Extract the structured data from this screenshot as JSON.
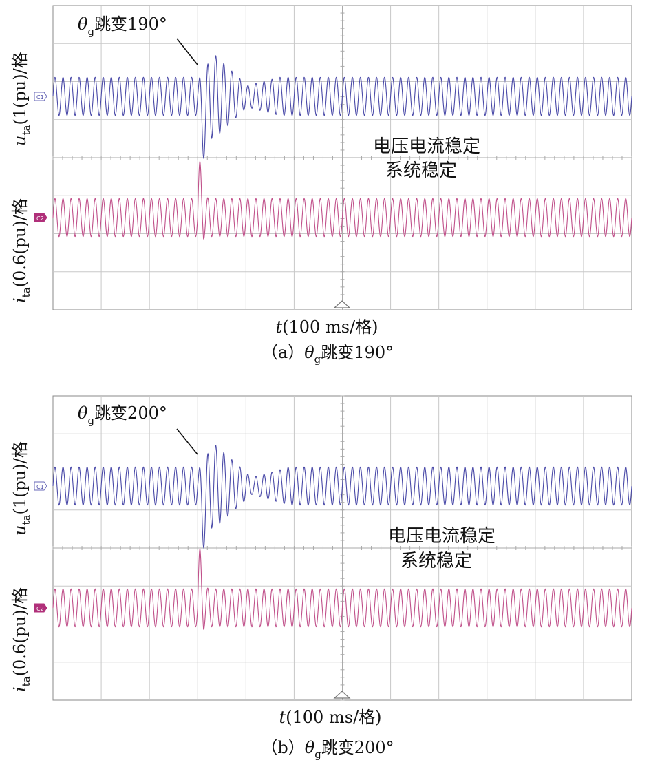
{
  "panels": [
    {
      "id": "a",
      "caption_prefix": "（a）",
      "caption_theta": "θ",
      "caption_sub": "g",
      "caption_rest": "跳变190°",
      "jump_label_theta": "θ",
      "jump_label_sub": "g",
      "jump_label_rest": "跳变190°",
      "annotation_line1": "电压电流稳定",
      "annotation_line2": "系统稳定",
      "ylabel_u_var": "u",
      "ylabel_u_sub": "ta",
      "ylabel_u_rest": "(1(pu)/格",
      "ylabel_i_var": "i",
      "ylabel_i_sub": "ta",
      "ylabel_i_rest": "(0.6(pu)/格",
      "xlabel_var": "t",
      "xlabel_rest": "(100 ms/格)",
      "ch1_marker": "C1",
      "ch2_marker": "C2"
    },
    {
      "id": "b",
      "caption_prefix": "（b）",
      "caption_theta": "θ",
      "caption_sub": "g",
      "caption_rest": "跳变200°",
      "jump_label_theta": "θ",
      "jump_label_sub": "g",
      "jump_label_rest": "跳变200°",
      "annotation_line1": "电压电流稳定",
      "annotation_line2": "系统稳定",
      "ylabel_u_var": "u",
      "ylabel_u_sub": "ta",
      "ylabel_u_rest": "(1(pu)/格",
      "ylabel_i_var": "i",
      "ylabel_i_sub": "ta",
      "ylabel_i_rest": "(0.6(pu)/格",
      "xlabel_var": "t",
      "xlabel_rest": "(100 ms/格)",
      "ch1_marker": "C1",
      "ch2_marker": "C2"
    }
  ],
  "chart_data": [
    {
      "type": "line",
      "grid": true,
      "x_divisions": 12,
      "y_divisions": 8,
      "x_unit": "100 ms/div",
      "event_time_div": 3.0,
      "series": [
        {
          "name": "u_ta",
          "color": "#4a4aa8",
          "amplitude_div": 0.5,
          "periods_per_div": 6.0,
          "transient": {
            "peak_div": 1.1,
            "dip_div": 0.95,
            "settle_div": 1.7,
            "ripple_div": 0.28
          }
        },
        {
          "name": "i_ta",
          "color": "#c0508a",
          "amplitude_div": 0.5,
          "periods_per_div": 6.0,
          "transient": {
            "peak_div": 0.95,
            "dip_div": 0.2,
            "settle_div": 0.25
          }
        }
      ]
    },
    {
      "type": "line",
      "grid": true,
      "x_divisions": 12,
      "y_divisions": 8,
      "x_unit": "100 ms/div",
      "event_time_div": 3.0,
      "series": [
        {
          "name": "u_ta",
          "color": "#4a4aa8",
          "amplitude_div": 0.5,
          "periods_per_div": 6.0,
          "transient": {
            "peak_div": 1.1,
            "dip_div": 0.95,
            "settle_div": 1.9,
            "ripple_div": 0.22
          }
        },
        {
          "name": "i_ta",
          "color": "#c0508a",
          "amplitude_div": 0.5,
          "periods_per_div": 6.0,
          "transient": {
            "peak_div": 1.0,
            "dip_div": 0.2,
            "settle_div": 0.25
          }
        }
      ]
    }
  ]
}
